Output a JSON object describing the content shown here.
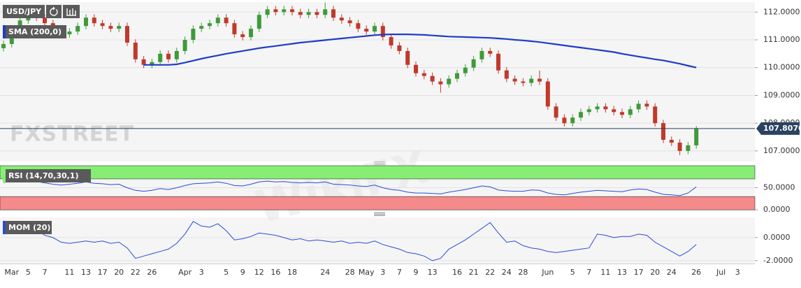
{
  "chart_data": [
    {
      "type": "candlestick",
      "title": "USD/JPY",
      "up_color": "#3f9a3a",
      "down_color": "#c0392b",
      "candles": [
        [
          110.7,
          110.97,
          110.58,
          110.85
        ],
        [
          110.85,
          111.42,
          110.73,
          111.3
        ],
        [
          111.3,
          111.82,
          111.18,
          111.7
        ],
        [
          111.7,
          112.12,
          111.58,
          112.0
        ],
        [
          112.0,
          112.12,
          111.68,
          111.8
        ],
        [
          111.8,
          111.92,
          111.48,
          111.6
        ],
        [
          111.6,
          111.72,
          111.28,
          111.4
        ],
        [
          111.4,
          111.52,
          111.08,
          111.2
        ],
        [
          111.2,
          111.42,
          111.08,
          111.3
        ],
        [
          111.3,
          111.62,
          111.18,
          111.5
        ],
        [
          111.5,
          111.92,
          111.38,
          111.8
        ],
        [
          111.8,
          111.92,
          111.48,
          111.6
        ],
        [
          111.6,
          111.72,
          111.38,
          111.5
        ],
        [
          111.5,
          111.62,
          111.28,
          111.4
        ],
        [
          111.4,
          111.62,
          111.28,
          111.5
        ],
        [
          111.5,
          111.62,
          110.78,
          110.9
        ],
        [
          110.9,
          111.02,
          110.18,
          110.3
        ],
        [
          110.3,
          110.42,
          109.98,
          110.1
        ],
        [
          110.1,
          110.32,
          109.98,
          110.2
        ],
        [
          110.2,
          110.62,
          110.08,
          110.5
        ],
        [
          110.5,
          110.62,
          110.18,
          110.3
        ],
        [
          110.3,
          110.72,
          110.18,
          110.6
        ],
        [
          110.6,
          111.12,
          110.48,
          111.0
        ],
        [
          111.0,
          111.52,
          110.88,
          111.4
        ],
        [
          111.4,
          111.62,
          111.28,
          111.5
        ],
        [
          111.5,
          111.72,
          111.38,
          111.6
        ],
        [
          111.6,
          111.92,
          111.48,
          111.8
        ],
        [
          111.8,
          111.92,
          111.48,
          111.6
        ],
        [
          111.6,
          111.72,
          111.08,
          111.2
        ],
        [
          111.2,
          111.32,
          110.98,
          111.1
        ],
        [
          111.1,
          111.52,
          110.98,
          111.4
        ],
        [
          111.4,
          112.02,
          111.28,
          111.9
        ],
        [
          111.9,
          112.22,
          111.78,
          112.1
        ],
        [
          112.1,
          112.22,
          111.88,
          112.0
        ],
        [
          112.0,
          112.22,
          111.88,
          112.1
        ],
        [
          112.1,
          112.22,
          111.88,
          112.0
        ],
        [
          112.0,
          112.12,
          111.78,
          111.9
        ],
        [
          111.9,
          112.12,
          111.78,
          112.0
        ],
        [
          112.0,
          112.12,
          111.78,
          111.9
        ],
        [
          111.9,
          112.35,
          111.78,
          112.1
        ],
        [
          112.1,
          112.22,
          111.68,
          111.8
        ],
        [
          111.8,
          111.92,
          111.58,
          111.7
        ],
        [
          111.7,
          111.82,
          111.48,
          111.6
        ],
        [
          111.6,
          111.72,
          111.28,
          111.4
        ],
        [
          111.4,
          111.52,
          111.18,
          111.3
        ],
        [
          111.3,
          111.62,
          111.18,
          111.5
        ],
        [
          111.5,
          111.62,
          110.98,
          111.1
        ],
        [
          111.1,
          111.22,
          110.68,
          110.8
        ],
        [
          110.8,
          110.92,
          110.48,
          110.6
        ],
        [
          110.6,
          110.72,
          109.98,
          110.1
        ],
        [
          110.1,
          110.22,
          109.68,
          109.8
        ],
        [
          109.8,
          109.92,
          109.58,
          109.7
        ],
        [
          109.7,
          109.82,
          109.38,
          109.5
        ],
        [
          109.5,
          109.62,
          109.1,
          109.4
        ],
        [
          109.4,
          109.72,
          109.28,
          109.6
        ],
        [
          109.6,
          109.92,
          109.48,
          109.8
        ],
        [
          109.8,
          110.12,
          109.68,
          110.0
        ],
        [
          110.0,
          110.42,
          109.88,
          110.3
        ],
        [
          110.3,
          110.72,
          110.18,
          110.6
        ],
        [
          110.6,
          110.72,
          110.38,
          110.5
        ],
        [
          110.5,
          110.62,
          109.78,
          109.9
        ],
        [
          109.9,
          110.02,
          109.48,
          109.6
        ],
        [
          109.6,
          109.72,
          109.38,
          109.5
        ],
        [
          109.5,
          109.62,
          109.33,
          109.45
        ],
        [
          109.45,
          109.72,
          109.33,
          109.6
        ],
        [
          109.6,
          109.9,
          109.38,
          109.5
        ],
        [
          109.5,
          109.62,
          108.48,
          108.6
        ],
        [
          108.6,
          108.72,
          108.08,
          108.2
        ],
        [
          108.2,
          108.32,
          107.88,
          108.0
        ],
        [
          108.0,
          108.32,
          107.88,
          108.2
        ],
        [
          108.2,
          108.52,
          108.08,
          108.4
        ],
        [
          108.4,
          108.62,
          108.28,
          108.5
        ],
        [
          108.5,
          108.72,
          108.38,
          108.6
        ],
        [
          108.6,
          108.72,
          108.38,
          108.5
        ],
        [
          108.5,
          108.62,
          108.28,
          108.4
        ],
        [
          108.4,
          108.52,
          108.18,
          108.3
        ],
        [
          108.3,
          108.62,
          108.18,
          108.5
        ],
        [
          108.5,
          108.82,
          108.38,
          108.7
        ],
        [
          108.7,
          108.82,
          108.48,
          108.6
        ],
        [
          108.6,
          108.72,
          107.88,
          108.0
        ],
        [
          108.0,
          108.12,
          107.28,
          107.4
        ],
        [
          107.4,
          107.52,
          107.18,
          107.3
        ],
        [
          107.3,
          107.42,
          106.85,
          107.0
        ],
        [
          107.0,
          107.32,
          106.88,
          107.2
        ],
        [
          107.2,
          107.9,
          107.08,
          107.807
        ],
        null,
        null,
        null,
        null,
        null
      ],
      "series": [
        {
          "name": "SMA (200,0)",
          "color": "#1e3cc8",
          "values": [
            null,
            null,
            null,
            null,
            null,
            null,
            null,
            null,
            null,
            null,
            null,
            null,
            null,
            null,
            null,
            null,
            null,
            110.1,
            110.1,
            110.1,
            110.1,
            110.12,
            110.18,
            110.25,
            110.32,
            110.38,
            110.44,
            110.5,
            110.55,
            110.6,
            110.65,
            110.7,
            110.74,
            110.78,
            110.82,
            110.86,
            110.9,
            110.93,
            110.96,
            110.99,
            111.02,
            111.05,
            111.08,
            111.11,
            111.14,
            111.17,
            111.19,
            111.2,
            111.2,
            111.2,
            111.19,
            111.18,
            111.16,
            111.14,
            111.12,
            111.11,
            111.1,
            111.09,
            111.08,
            111.07,
            111.05,
            111.03,
            111.0,
            110.98,
            110.95,
            110.92,
            110.88,
            110.84,
            110.8,
            110.76,
            110.72,
            110.68,
            110.64,
            110.6,
            110.56,
            110.5,
            110.45,
            110.4,
            110.35,
            110.3,
            110.26,
            110.2,
            110.14,
            110.07,
            110.0,
            null,
            null,
            null,
            null,
            null
          ]
        }
      ],
      "ylim": [
        106.62,
        112.36
      ],
      "yticks": [
        {
          "value": 107,
          "label": "107.0000"
        },
        {
          "value": 108,
          "label": "108.0000"
        },
        {
          "value": 109,
          "label": "109.0000"
        },
        {
          "value": 110,
          "label": "110.0000"
        },
        {
          "value": 111,
          "label": "111.0000"
        },
        {
          "value": 112,
          "label": "112.0000"
        }
      ],
      "last_price": {
        "value": 107.807,
        "label": "107.8070"
      },
      "grid": true,
      "watermarks": [
        "FXSTREET",
        "WikiFX"
      ]
    },
    {
      "type": "line",
      "series": [
        {
          "name": "RSI (14,70,30,1)",
          "color": "#2a4bd7",
          "values": [
            62,
            64,
            66,
            68,
            64,
            61,
            58,
            56,
            58,
            60,
            63,
            60,
            59,
            57,
            58,
            50,
            44,
            42,
            44,
            48,
            46,
            50,
            55,
            59,
            60,
            61,
            63,
            60,
            55,
            54,
            58,
            63,
            65,
            63,
            64,
            62,
            61,
            62,
            61,
            63,
            58,
            57,
            56,
            54,
            53,
            56,
            50,
            46,
            44,
            40,
            38,
            38,
            37,
            36,
            40,
            43,
            46,
            50,
            54,
            52,
            45,
            43,
            42,
            42,
            45,
            44,
            38,
            35,
            34,
            37,
            40,
            42,
            44,
            43,
            42,
            41,
            45,
            47,
            46,
            40,
            35,
            34,
            32,
            38,
            52,
            null,
            null,
            null,
            null,
            null
          ]
        }
      ],
      "bands": [
        {
          "from": 70,
          "to": 100,
          "color": "#86ee74"
        },
        {
          "from": 0,
          "to": 30,
          "color": "#f58a8a"
        }
      ],
      "ylim": [
        -3,
        100
      ],
      "yticks": [
        {
          "value": 0,
          "label": "0.0000"
        },
        {
          "value": 50,
          "label": "50.0000"
        }
      ],
      "grid": true
    },
    {
      "type": "line",
      "series": [
        {
          "name": "MOM (20)",
          "color": "#2a4bd7",
          "values": [
            1.1,
            1.0,
            0.9,
            0.6,
            0.7,
            0.2,
            0.0,
            -0.4,
            -0.5,
            -0.4,
            -0.3,
            -0.4,
            -0.3,
            -0.5,
            -0.4,
            -0.9,
            -1.8,
            -1.6,
            -1.4,
            -1.2,
            -1.0,
            -0.5,
            0.3,
            1.4,
            1.0,
            0.9,
            1.2,
            0.6,
            -0.2,
            -0.1,
            0.1,
            0.4,
            0.3,
            0.2,
            0.0,
            -0.2,
            -0.1,
            -0.3,
            -0.2,
            -0.3,
            -0.4,
            -0.3,
            -0.5,
            -0.4,
            -0.5,
            -0.3,
            -0.6,
            -0.8,
            -1.0,
            -1.3,
            -1.4,
            -1.6,
            -2.0,
            -1.8,
            -1.0,
            -0.6,
            -0.2,
            0.3,
            0.8,
            1.3,
            0.4,
            -0.4,
            -0.3,
            -0.7,
            -0.9,
            -1.0,
            -1.2,
            -1.3,
            -1.2,
            -1.1,
            -1.0,
            -0.9,
            0.3,
            0.2,
            0.0,
            0.1,
            0.1,
            0.3,
            0.2,
            -0.4,
            -0.8,
            -1.2,
            -1.6,
            -1.2,
            -0.6,
            null,
            null,
            null,
            null,
            null
          ]
        }
      ],
      "ylim": [
        -2.25,
        1.75
      ],
      "yticks": [
        {
          "value": -2,
          "label": "-2.0000"
        },
        {
          "value": 0,
          "label": "0.0000"
        }
      ],
      "grid": true,
      "categories": [
        null,
        "Mar",
        null,
        "5",
        null,
        "7",
        null,
        null,
        "11",
        null,
        "13",
        null,
        "17",
        null,
        "20",
        null,
        "22",
        null,
        "26",
        null,
        null,
        null,
        "Apr",
        null,
        "3",
        null,
        null,
        "5",
        null,
        "9",
        null,
        "12",
        null,
        "16",
        null,
        "18",
        null,
        null,
        null,
        "24",
        null,
        null,
        "28",
        null,
        "May",
        null,
        "3",
        null,
        "7",
        null,
        "9",
        null,
        "13",
        null,
        null,
        "16",
        null,
        "21",
        null,
        "22",
        null,
        "24",
        null,
        "28",
        null,
        null,
        "Jun",
        null,
        null,
        "5",
        null,
        "7",
        null,
        "11",
        null,
        "13",
        null,
        "17",
        null,
        "20",
        null,
        "24",
        null,
        null,
        "26",
        null,
        null,
        "Jul",
        null,
        "3"
      ]
    }
  ]
}
